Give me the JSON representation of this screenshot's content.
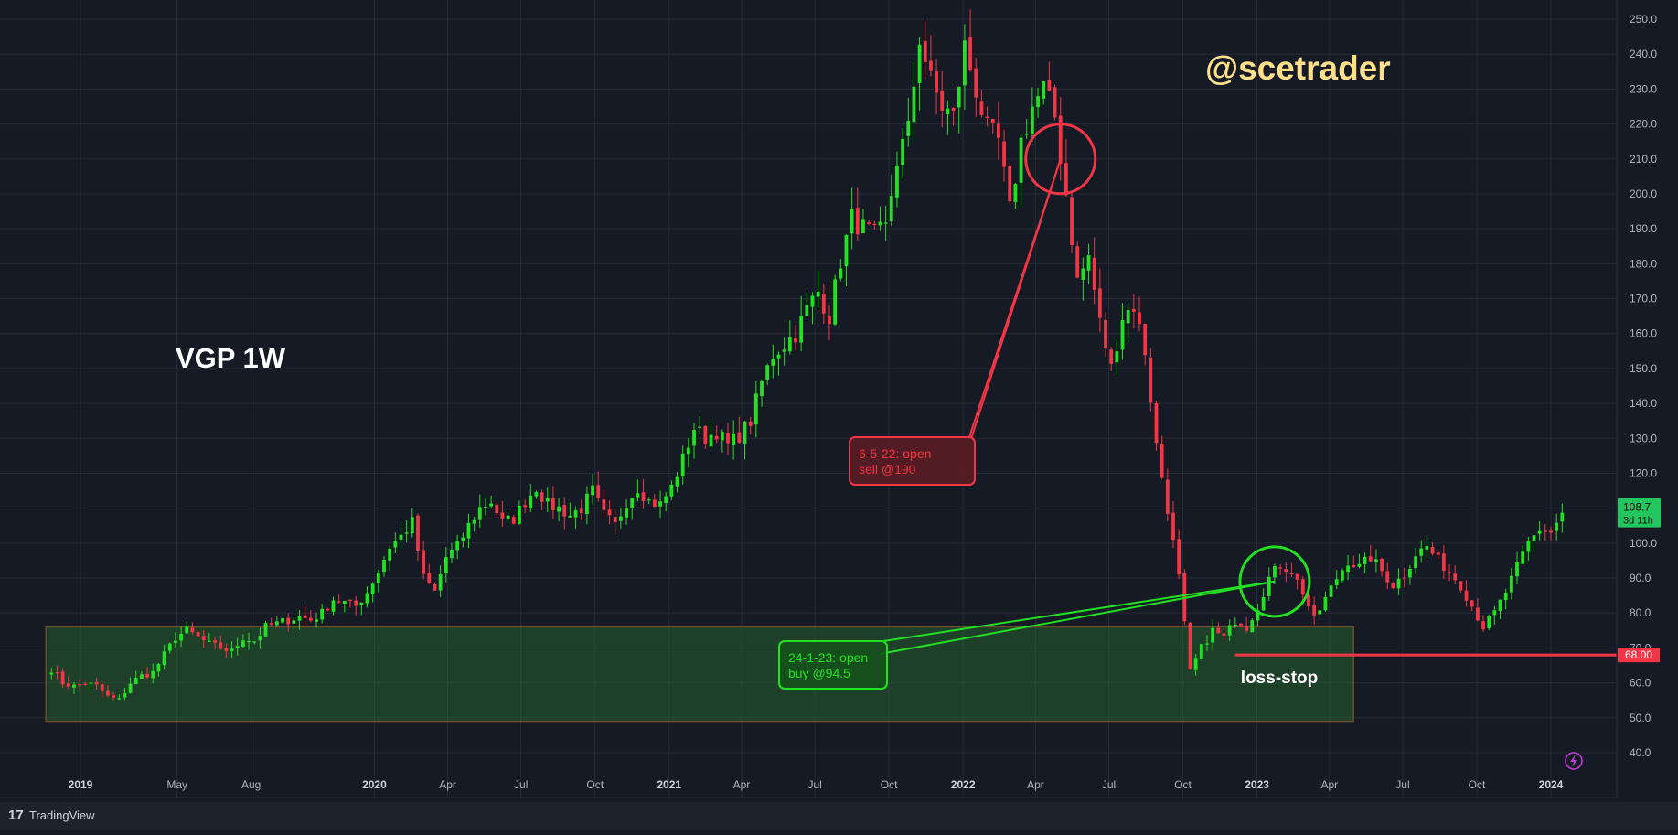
{
  "chart_data": {
    "type": "candlestick",
    "title": "VGP 1W",
    "watermark": "@scetrader",
    "ylim": [
      35,
      252
    ],
    "y_ticks": [
      "250.0",
      "240.0",
      "230.0",
      "220.0",
      "210.0",
      "200.0",
      "190.0",
      "180.0",
      "170.0",
      "160.0",
      "150.0",
      "140.0",
      "130.0",
      "120.0",
      "110.0",
      "100.0",
      "90.0",
      "80.0",
      "70.0",
      "60.0",
      "50.0",
      "40.0"
    ],
    "y_tick_values": [
      250,
      240,
      230,
      220,
      210,
      200,
      190,
      180,
      170,
      160,
      150,
      140,
      130,
      120,
      110,
      100,
      90,
      80,
      70,
      60,
      50,
      40
    ],
    "x_ticks": [
      {
        "label": "2019",
        "date": "2019-01-01",
        "bold": true
      },
      {
        "label": "May",
        "date": "2019-05-01",
        "bold": false
      },
      {
        "label": "Aug",
        "date": "2019-08-01",
        "bold": false
      },
      {
        "label": "2020",
        "date": "2020-01-01",
        "bold": true
      },
      {
        "label": "Apr",
        "date": "2020-04-01",
        "bold": false
      },
      {
        "label": "Jul",
        "date": "2020-07-01",
        "bold": false
      },
      {
        "label": "Oct",
        "date": "2020-10-01",
        "bold": false
      },
      {
        "label": "2021",
        "date": "2021-01-01",
        "bold": true
      },
      {
        "label": "Apr",
        "date": "2021-04-01",
        "bold": false
      },
      {
        "label": "Jul",
        "date": "2021-07-01",
        "bold": false
      },
      {
        "label": "Oct",
        "date": "2021-10-01",
        "bold": false
      },
      {
        "label": "2022",
        "date": "2022-01-01",
        "bold": true
      },
      {
        "label": "Apr",
        "date": "2022-04-01",
        "bold": false
      },
      {
        "label": "Jul",
        "date": "2022-07-01",
        "bold": false
      },
      {
        "label": "Oct",
        "date": "2022-10-01",
        "bold": false
      },
      {
        "label": "2023",
        "date": "2023-01-01",
        "bold": true
      },
      {
        "label": "Apr",
        "date": "2023-04-01",
        "bold": false
      },
      {
        "label": "Jul",
        "date": "2023-07-01",
        "bold": false
      },
      {
        "label": "Oct",
        "date": "2023-10-01",
        "bold": false
      },
      {
        "label": "2024",
        "date": "2024-01-01",
        "bold": true
      }
    ],
    "series": [
      {
        "close_path": [
          [
            "2018-11-26",
            64
          ],
          [
            "2018-12-10",
            60
          ],
          [
            "2018-12-24",
            59
          ],
          [
            "2019-01-07",
            60
          ],
          [
            "2019-01-21",
            59
          ],
          [
            "2019-02-04",
            56
          ],
          [
            "2019-02-18",
            55
          ],
          [
            "2019-03-04",
            60
          ],
          [
            "2019-03-18",
            62
          ],
          [
            "2019-04-01",
            63
          ],
          [
            "2019-04-15",
            68
          ],
          [
            "2019-04-29",
            73
          ],
          [
            "2019-05-13",
            75
          ],
          [
            "2019-05-27",
            73
          ],
          [
            "2019-06-10",
            71
          ],
          [
            "2019-06-24",
            70
          ],
          [
            "2019-07-08",
            69
          ],
          [
            "2019-07-22",
            73
          ],
          [
            "2019-08-05",
            72
          ],
          [
            "2019-08-19",
            76
          ],
          [
            "2019-09-02",
            77
          ],
          [
            "2019-09-16",
            78
          ],
          [
            "2019-09-30",
            79
          ],
          [
            "2019-10-14",
            78
          ],
          [
            "2019-10-28",
            80
          ],
          [
            "2019-11-11",
            84
          ],
          [
            "2019-11-25",
            83
          ],
          [
            "2019-12-09",
            82
          ],
          [
            "2019-12-23",
            86
          ],
          [
            "2020-01-06",
            92
          ],
          [
            "2020-01-20",
            99
          ],
          [
            "2020-02-03",
            102
          ],
          [
            "2020-02-17",
            106
          ],
          [
            "2020-03-02",
            90
          ],
          [
            "2020-03-16",
            86
          ],
          [
            "2020-03-30",
            96
          ],
          [
            "2020-04-13",
            99
          ],
          [
            "2020-04-27",
            105
          ],
          [
            "2020-05-11",
            110
          ],
          [
            "2020-05-25",
            112
          ],
          [
            "2020-06-08",
            106
          ],
          [
            "2020-06-22",
            107
          ],
          [
            "2020-07-06",
            112
          ],
          [
            "2020-07-20",
            116
          ],
          [
            "2020-08-03",
            111
          ],
          [
            "2020-08-17",
            110
          ],
          [
            "2020-08-31",
            108
          ],
          [
            "2020-09-14",
            110
          ],
          [
            "2020-09-28",
            115
          ],
          [
            "2020-10-12",
            108
          ],
          [
            "2020-10-26",
            105
          ],
          [
            "2020-11-09",
            112
          ],
          [
            "2020-11-23",
            116
          ],
          [
            "2020-12-07",
            112
          ],
          [
            "2020-12-21",
            111
          ],
          [
            "2021-01-04",
            116
          ],
          [
            "2021-01-18",
            124
          ],
          [
            "2021-02-01",
            133
          ],
          [
            "2021-02-15",
            130
          ],
          [
            "2021-03-01",
            132
          ],
          [
            "2021-03-15",
            128
          ],
          [
            "2021-03-29",
            131
          ],
          [
            "2021-04-12",
            135
          ],
          [
            "2021-04-26",
            146
          ],
          [
            "2021-05-10",
            154
          ],
          [
            "2021-05-24",
            157
          ],
          [
            "2021-06-07",
            160
          ],
          [
            "2021-06-21",
            167
          ],
          [
            "2021-07-05",
            172
          ],
          [
            "2021-07-19",
            165
          ],
          [
            "2021-08-02",
            181
          ],
          [
            "2021-08-16",
            193
          ],
          [
            "2021-08-30",
            190
          ],
          [
            "2021-09-13",
            188
          ],
          [
            "2021-09-27",
            190
          ],
          [
            "2021-10-11",
            210
          ],
          [
            "2021-10-25",
            218
          ],
          [
            "2021-11-08",
            245
          ],
          [
            "2021-11-22",
            232
          ],
          [
            "2021-12-06",
            225
          ],
          [
            "2021-12-20",
            222
          ],
          [
            "2022-01-03",
            242
          ],
          [
            "2022-01-17",
            230
          ],
          [
            "2022-01-31",
            218
          ],
          [
            "2022-02-14",
            215
          ],
          [
            "2022-02-28",
            195
          ],
          [
            "2022-03-14",
            215
          ],
          [
            "2022-03-28",
            225
          ],
          [
            "2022-04-11",
            230
          ],
          [
            "2022-04-25",
            222
          ],
          [
            "2022-05-09",
            200
          ],
          [
            "2022-05-23",
            175
          ],
          [
            "2022-06-06",
            182
          ],
          [
            "2022-06-20",
            163
          ],
          [
            "2022-07-04",
            150
          ],
          [
            "2022-07-18",
            165
          ],
          [
            "2022-08-01",
            168
          ],
          [
            "2022-08-15",
            155
          ],
          [
            "2022-08-29",
            128
          ],
          [
            "2022-09-12",
            110
          ],
          [
            "2022-09-26",
            90
          ],
          [
            "2022-10-10",
            63
          ],
          [
            "2022-10-24",
            70
          ],
          [
            "2022-11-07",
            75
          ],
          [
            "2022-11-21",
            73
          ],
          [
            "2022-12-05",
            78
          ],
          [
            "2022-12-19",
            76
          ],
          [
            "2023-01-02",
            82
          ],
          [
            "2023-01-16",
            90
          ],
          [
            "2023-01-30",
            94
          ],
          [
            "2023-02-13",
            92
          ],
          [
            "2023-02-27",
            86
          ],
          [
            "2023-03-13",
            78
          ],
          [
            "2023-03-27",
            84
          ],
          [
            "2023-04-10",
            90
          ],
          [
            "2023-04-24",
            95
          ],
          [
            "2023-05-08",
            93
          ],
          [
            "2023-05-22",
            96
          ],
          [
            "2023-06-05",
            92
          ],
          [
            "2023-06-19",
            88
          ],
          [
            "2023-07-03",
            91
          ],
          [
            "2023-07-17",
            97
          ],
          [
            "2023-07-31",
            99
          ],
          [
            "2023-08-14",
            95
          ],
          [
            "2023-08-28",
            92
          ],
          [
            "2023-09-11",
            88
          ],
          [
            "2023-09-25",
            82
          ],
          [
            "2023-10-09",
            76
          ],
          [
            "2023-10-23",
            80
          ],
          [
            "2023-11-06",
            86
          ],
          [
            "2023-11-20",
            93
          ],
          [
            "2023-12-04",
            100
          ],
          [
            "2023-12-18",
            104
          ],
          [
            "2024-01-01",
            103
          ],
          [
            "2024-01-15",
            108.7
          ]
        ]
      }
    ],
    "last_price": {
      "label": "108.7",
      "countdown": "3d 11h",
      "color": "#22c55e"
    },
    "support_zone": {
      "from": "2018-11-19",
      "to": "2023-05-01",
      "low": 49,
      "high": 76,
      "color": "#2e7d32"
    },
    "stop_line": {
      "label": "68.00",
      "value": 68,
      "from": "2022-12-05",
      "text": "loss-stop",
      "color": "#f23645"
    },
    "annotations": [
      {
        "kind": "sell",
        "line1": "6-5-22: open",
        "line2": "sell @190",
        "color": "#f23645",
        "target_date": "2022-05-02",
        "target_value": 210
      },
      {
        "kind": "buy",
        "line1": "24-1-23: open",
        "line2": "buy @94.5",
        "color": "#22e022",
        "target_date": "2023-01-23",
        "target_value": 89
      }
    ],
    "colors": {
      "background": "#161a25",
      "up": "#22e022",
      "down": "#f23645",
      "grid": "#262a36",
      "axis_text": "#b2b5be",
      "label_text": "#ffffff",
      "watermark": "#ffe08a"
    }
  },
  "footer": {
    "brand": "TradingView"
  }
}
